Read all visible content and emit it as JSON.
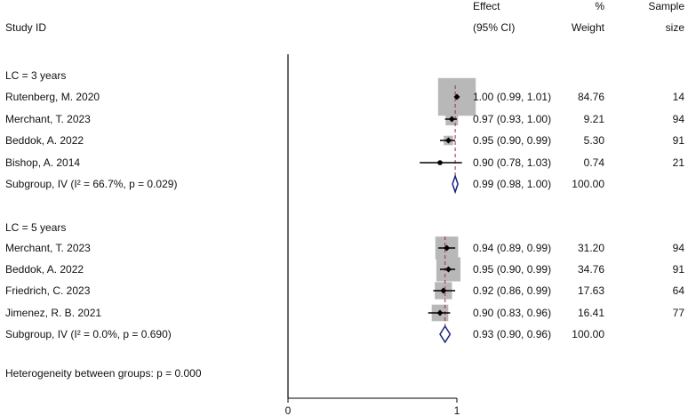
{
  "header": {
    "study_id": "Study ID",
    "effect_line1": "Effect",
    "effect_line2": "(95% CI)",
    "weight_line1": "%",
    "weight_line2": "Weight",
    "sample_line1": "Sample",
    "sample_line2": "size"
  },
  "footer": {
    "heterogeneity": "Heterogeneity between groups: p = 0.000"
  },
  "chart_data": {
    "type": "forest",
    "axis": {
      "ticks": [
        "0",
        "1"
      ],
      "null_line": 0,
      "reference_line": 1,
      "xlim": [
        0,
        1.05
      ]
    },
    "overall_reference_colors": {
      "dashed_line": "#a0284a",
      "diamond": "#1a237e",
      "box": "#b8b8b8",
      "point": "#000000"
    },
    "groups": [
      {
        "label": "LC = 3 years",
        "studies": [
          {
            "study": "Rutenberg, M. 2020",
            "effect": 1.0,
            "lower": 0.99,
            "upper": 1.01,
            "effect_text": "1.00 (0.99, 1.01)",
            "weight": 84.76,
            "weight_text": "84.76",
            "sample_size": "14"
          },
          {
            "study": "Merchant, T. 2023",
            "effect": 0.97,
            "lower": 0.93,
            "upper": 1.0,
            "effect_text": "0.97 (0.93, 1.00)",
            "weight": 9.21,
            "weight_text": "9.21",
            "sample_size": "94"
          },
          {
            "study": "Beddok, A. 2022",
            "effect": 0.95,
            "lower": 0.9,
            "upper": 0.99,
            "effect_text": "0.95 (0.90, 0.99)",
            "weight": 5.3,
            "weight_text": "5.30",
            "sample_size": "91"
          },
          {
            "study": "Bishop, A. 2014",
            "effect": 0.9,
            "lower": 0.78,
            "upper": 1.03,
            "effect_text": "0.90 (0.78, 1.03)",
            "weight": 0.74,
            "weight_text": "0.74",
            "sample_size": "21"
          }
        ],
        "subgroup": {
          "label": "Subgroup, IV (I² = 66.7%, p = 0.029)",
          "effect": 0.99,
          "lower": 0.98,
          "upper": 1.0,
          "effect_text": "0.99 (0.98, 1.00)",
          "weight_text": "100.00"
        }
      },
      {
        "label": "LC = 5 years",
        "studies": [
          {
            "study": "Merchant, T. 2023",
            "effect": 0.94,
            "lower": 0.89,
            "upper": 0.99,
            "effect_text": "0.94 (0.89, 0.99)",
            "weight": 31.2,
            "weight_text": "31.20",
            "sample_size": "94"
          },
          {
            "study": "Beddok, A. 2022",
            "effect": 0.95,
            "lower": 0.9,
            "upper": 0.99,
            "effect_text": "0.95 (0.90, 0.99)",
            "weight": 34.76,
            "weight_text": "34.76",
            "sample_size": "91"
          },
          {
            "study": "Friedrich, C. 2023",
            "effect": 0.92,
            "lower": 0.86,
            "upper": 0.99,
            "effect_text": "0.92 (0.86, 0.99)",
            "weight": 17.63,
            "weight_text": "17.63",
            "sample_size": "64"
          },
          {
            "study": "Jimenez, R. B. 2021",
            "effect": 0.9,
            "lower": 0.83,
            "upper": 0.96,
            "effect_text": "0.90 (0.83, 0.96)",
            "weight": 16.41,
            "weight_text": "16.41",
            "sample_size": "77"
          }
        ],
        "subgroup": {
          "label": "Subgroup, IV (I² = 0.0%, p = 0.690)",
          "effect": 0.93,
          "lower": 0.9,
          "upper": 0.96,
          "effect_text": "0.93 (0.90, 0.96)",
          "weight_text": "100.00"
        }
      }
    ]
  }
}
